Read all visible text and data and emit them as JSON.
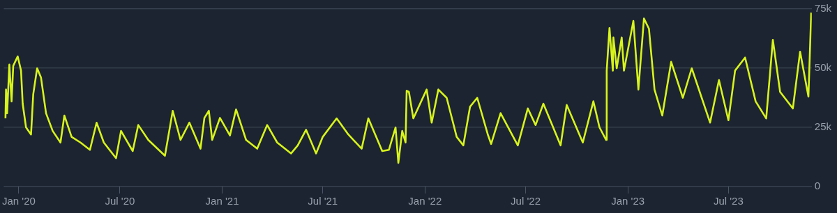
{
  "chart_data": {
    "type": "line",
    "color": "#d7f41c",
    "grid": "y",
    "legend": false,
    "marker": "none",
    "line_style": "solid",
    "x": [
      "2019-12-08",
      "2019-12-09",
      "2019-12-11",
      "2019-12-15",
      "2019-12-19",
      "2019-12-22",
      "2019-12-30",
      "2020-01-05",
      "2020-01-08",
      "2020-01-14",
      "2020-01-23",
      "2020-01-27",
      "2020-02-03",
      "2020-02-10",
      "2020-02-19",
      "2020-03-02",
      "2020-03-16",
      "2020-03-23",
      "2020-04-05",
      "2020-04-21",
      "2020-05-08",
      "2020-05-20",
      "2020-06-02",
      "2020-06-24",
      "2020-07-03",
      "2020-07-24",
      "2020-08-03",
      "2020-08-21",
      "2020-09-20",
      "2020-10-04",
      "2020-10-18",
      "2020-11-03",
      "2020-11-23",
      "2020-11-30",
      "2020-12-08",
      "2020-12-14",
      "2020-12-28",
      "2021-01-15",
      "2021-01-26",
      "2021-02-13",
      "2021-03-05",
      "2021-03-23",
      "2021-04-10",
      "2021-05-05",
      "2021-05-17",
      "2021-06-01",
      "2021-06-19",
      "2021-07-01",
      "2021-07-26",
      "2021-08-16",
      "2021-09-09",
      "2021-09-21",
      "2021-10-16",
      "2021-10-28",
      "2021-11-09",
      "2021-11-14",
      "2021-11-21",
      "2021-11-27",
      "2021-11-29",
      "2021-12-03",
      "2021-12-11",
      "2022-01-04",
      "2022-01-13",
      "2022-01-25",
      "2022-02-09",
      "2022-02-27",
      "2022-03-11",
      "2022-03-23",
      "2022-04-05",
      "2022-04-24",
      "2022-04-30",
      "2022-05-17",
      "2022-06-17",
      "2022-07-05",
      "2022-07-19",
      "2022-08-02",
      "2022-09-02",
      "2022-09-13",
      "2022-10-12",
      "2022-10-31",
      "2022-11-11",
      "2022-11-23",
      "2022-11-24",
      "2022-11-29",
      "2022-12-05",
      "2022-12-06",
      "2022-12-12",
      "2022-12-21",
      "2022-12-25",
      "2023-01-11",
      "2023-01-20",
      "2023-01-30",
      "2023-02-08",
      "2023-02-18",
      "2023-03-04",
      "2023-03-20",
      "2023-04-10",
      "2023-04-26",
      "2023-05-29",
      "2023-06-14",
      "2023-07-01",
      "2023-07-13",
      "2023-07-31",
      "2023-08-19",
      "2023-09-07",
      "2023-09-19",
      "2023-10-02",
      "2023-10-25",
      "2023-11-07",
      "2023-11-22",
      "2023-11-27"
    ],
    "values": [
      28800,
      41000,
      31000,
      51500,
      36000,
      51000,
      55000,
      49000,
      35000,
      25000,
      22000,
      39000,
      50000,
      46000,
      31000,
      23500,
      18600,
      30000,
      21000,
      18600,
      15500,
      27000,
      18600,
      12000,
      23500,
      15000,
      26000,
      19700,
      13000,
      32000,
      19700,
      27000,
      16000,
      29000,
      32000,
      19700,
      29000,
      21600,
      32600,
      19700,
      16000,
      26000,
      18600,
      14000,
      17400,
      24000,
      14000,
      21000,
      28800,
      22000,
      16000,
      28800,
      15000,
      15500,
      25000,
      10000,
      23500,
      18600,
      40500,
      40000,
      28800,
      41000,
      27000,
      41000,
      37500,
      21000,
      17400,
      33700,
      37500,
      22000,
      18000,
      31000,
      17400,
      33000,
      26000,
      35000,
      17400,
      34500,
      18600,
      36000,
      25000,
      19700,
      49000,
      67000,
      49000,
      63000,
      50000,
      63000,
      49000,
      70000,
      41000,
      71000,
      66700,
      41000,
      30000,
      52700,
      37500,
      50000,
      27000,
      45000,
      28000,
      49000,
      54500,
      36000,
      28800,
      62000,
      40000,
      33000,
      57000,
      38000,
      73500
    ],
    "xlim": [
      "2019-12-05",
      "2023-11-28"
    ],
    "xticks": [
      {
        "value": "2020-01-01",
        "label": "Jan '20"
      },
      {
        "value": "2020-07-01",
        "label": "Jul '20"
      },
      {
        "value": "2021-01-01",
        "label": "Jan '21"
      },
      {
        "value": "2021-07-01",
        "label": "Jul '21"
      },
      {
        "value": "2022-01-01",
        "label": "Jan '22"
      },
      {
        "value": "2022-07-01",
        "label": "Jul '22"
      },
      {
        "value": "2023-01-01",
        "label": "Jan '23"
      },
      {
        "value": "2023-07-01",
        "label": "Jul '23"
      }
    ],
    "ylim": [
      0,
      75000
    ],
    "yticks": [
      {
        "value": 0,
        "label": "0"
      },
      {
        "value": 25000,
        "label": "25k"
      },
      {
        "value": 50000,
        "label": "50k"
      },
      {
        "value": 75000,
        "label": "75k"
      }
    ]
  }
}
